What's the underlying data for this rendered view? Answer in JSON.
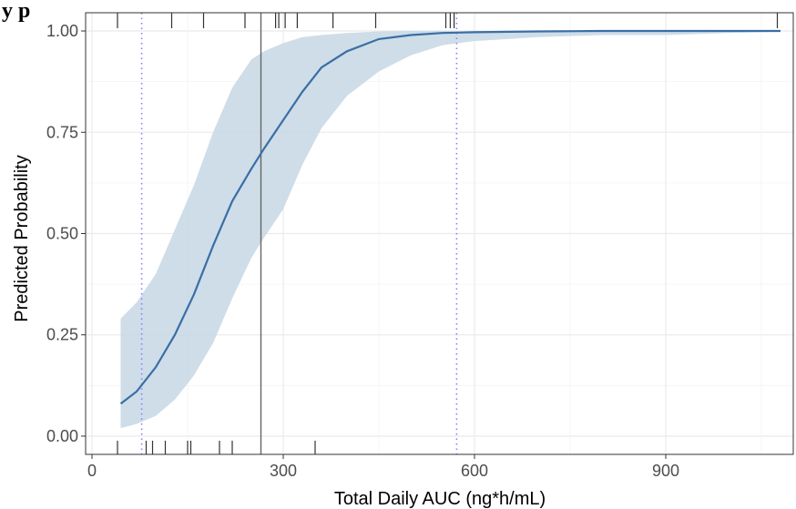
{
  "chart_data": {
    "type": "line",
    "title": "y   p",
    "xlabel": "Total Daily AUC (ng*h/mL)",
    "ylabel": "Predicted Probability",
    "xlim": [
      -10,
      1100
    ],
    "ylim": [
      -0.045,
      1.045
    ],
    "x_ticks": [
      0,
      300,
      600,
      900
    ],
    "x_tick_labels": [
      "0",
      "300",
      "600",
      "900"
    ],
    "y_ticks": [
      0,
      0.25,
      0.5,
      0.75,
      1.0
    ],
    "y_tick_labels": [
      "0.00",
      "0.25",
      "0.50",
      "0.75",
      "1.00"
    ],
    "grid": true,
    "legend": "none",
    "series": [
      {
        "x": [
          45,
          70,
          100,
          130,
          160,
          190,
          220,
          250,
          270,
          300,
          330,
          360,
          400,
          450,
          500,
          550,
          600,
          700,
          800,
          900,
          1000,
          1080
        ],
        "y": [
          0.08,
          0.11,
          0.17,
          0.25,
          0.35,
          0.47,
          0.58,
          0.66,
          0.71,
          0.78,
          0.85,
          0.91,
          0.95,
          0.98,
          0.99,
          0.995,
          0.997,
          0.999,
          1.0,
          1.0,
          1.0,
          1.0
        ],
        "lower": [
          0.02,
          0.03,
          0.05,
          0.09,
          0.15,
          0.23,
          0.34,
          0.44,
          0.49,
          0.56,
          0.67,
          0.76,
          0.84,
          0.9,
          0.94,
          0.965,
          0.975,
          0.985,
          0.99,
          0.99,
          0.995,
          0.998
        ],
        "upper": [
          0.29,
          0.33,
          0.4,
          0.51,
          0.62,
          0.75,
          0.86,
          0.93,
          0.95,
          0.97,
          0.985,
          0.99,
          0.995,
          0.999,
          1.0,
          1.0,
          1.0,
          1.0,
          1.0,
          1.0,
          1.0,
          1.0
        ]
      }
    ],
    "vertical_lines": [
      {
        "x": 265,
        "style": "solid"
      },
      {
        "x": 78,
        "style": "dotted"
      },
      {
        "x": 572,
        "style": "dotted"
      }
    ],
    "rug_top": [
      40,
      125,
      175,
      240,
      288,
      293,
      303,
      322,
      378,
      445,
      555,
      562,
      568,
      1075
    ],
    "rug_bottom": [
      40,
      85,
      95,
      115,
      150,
      155,
      200,
      220,
      350
    ],
    "colors": {
      "line": "#3a6ea5",
      "ribbon": "#c9d9e6",
      "ref_line": "#666666",
      "dotted": "#8080ff",
      "grid": "#ebebeb",
      "rug": "#333333"
    }
  }
}
